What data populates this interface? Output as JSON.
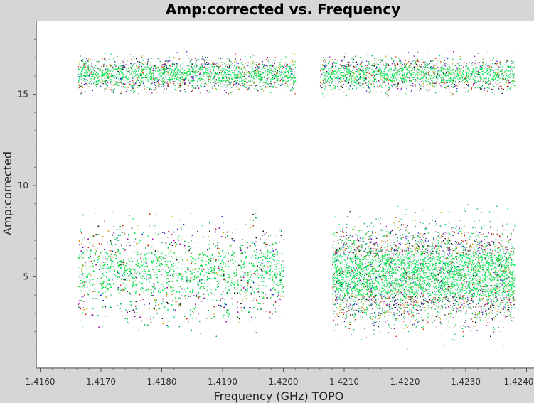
{
  "chart_data": {
    "type": "scatter",
    "title": "Amp:corrected vs. Frequency",
    "xlabel": "Frequency (GHz) TOPO",
    "ylabel": "Amp:corrected",
    "xlim": [
      1.416,
      1.424
    ],
    "ylim": [
      0,
      19
    ],
    "x_ticks": [
      "1.4160",
      "1.4170",
      "1.4180",
      "1.4190",
      "1.4200",
      "1.4210",
      "1.4220",
      "1.4230",
      "1.4240"
    ],
    "y_ticks": [
      "5",
      "10",
      "15"
    ],
    "grid": false,
    "legend": "none",
    "point_colors": [
      "#00dd66",
      "#00ee55",
      "#22cc33",
      "#00aa44",
      "#d4a000",
      "#cc2200",
      "#2222cc",
      "#9900aa",
      "#111111"
    ],
    "series": [
      {
        "x_range": [
          1.41662,
          1.4202
        ],
        "y_center": 16.1,
        "y_spread": 0.8,
        "y_min": 15.0,
        "y_max": 17.6
      },
      {
        "x_range": [
          1.4206,
          1.4238
        ],
        "y_center": 16.1,
        "y_spread": 0.8,
        "y_min": 14.9,
        "y_max": 17.6
      },
      {
        "x_range": [
          1.41662,
          1.42
        ],
        "y_center": 5.3,
        "y_spread": 2.3,
        "y_min": 1.3,
        "y_max": 8.6
      },
      {
        "x_range": [
          1.4208,
          1.4238
        ],
        "y_center": 5.1,
        "y_spread": 2.3,
        "y_min": 1.0,
        "y_max": 9.0
      }
    ]
  }
}
